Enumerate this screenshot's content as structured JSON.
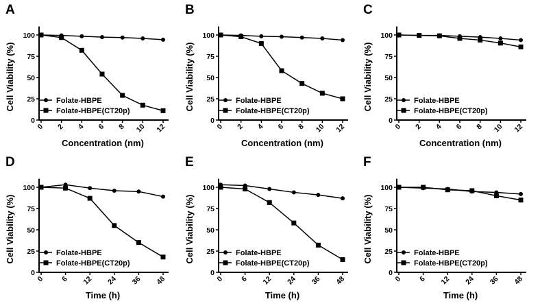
{
  "chart_data": [
    {
      "panel": "A",
      "type": "line",
      "xlabel": "Concentration (nm)",
      "ylabel": "Cell Viability (%)",
      "categories": [
        "0",
        "2",
        "4",
        "6",
        "8",
        "10",
        "12"
      ],
      "yticks": [
        "0",
        "25",
        "50",
        "75",
        "100"
      ],
      "ylim": [
        0,
        110
      ],
      "series": [
        {
          "name": "Folate-HBPE",
          "marker": "circle",
          "values": [
            100,
            99.5,
            98.5,
            97.5,
            97,
            96,
            94.5
          ]
        },
        {
          "name": "Folate-HBPE(CT20p)",
          "marker": "square",
          "values": [
            100,
            97,
            82,
            54,
            29,
            17.5,
            11
          ]
        }
      ],
      "legend": "bottom-left"
    },
    {
      "panel": "B",
      "type": "line",
      "xlabel": "Concentration (nm)",
      "ylabel": "Cell Viability (%)",
      "categories": [
        "0",
        "2",
        "4",
        "6",
        "8",
        "10",
        "12"
      ],
      "yticks": [
        "0",
        "25",
        "50",
        "75",
        "100"
      ],
      "ylim": [
        0,
        110
      ],
      "series": [
        {
          "name": "Folate-HBPE",
          "marker": "circle",
          "values": [
            100,
            99.5,
            98.5,
            98,
            97,
            96,
            94
          ]
        },
        {
          "name": "Folate-HBPE(CT20p)",
          "marker": "square",
          "values": [
            100,
            98,
            90,
            58,
            43,
            31.5,
            25
          ]
        }
      ],
      "legend": "bottom-left"
    },
    {
      "panel": "C",
      "type": "line",
      "xlabel": "Concentration (nm)",
      "ylabel": "Cell Viability (%)",
      "categories": [
        "0",
        "2",
        "4",
        "6",
        "8",
        "10",
        "12"
      ],
      "yticks": [
        "0",
        "25",
        "50",
        "75",
        "100"
      ],
      "ylim": [
        0,
        110
      ],
      "series": [
        {
          "name": "Folate-HBPE",
          "marker": "circle",
          "values": [
            100,
            99.5,
            99.5,
            98.5,
            97.5,
            96,
            94
          ]
        },
        {
          "name": "Folate-HBPE(CT20p)",
          "marker": "square",
          "values": [
            100,
            99.5,
            99,
            96,
            94,
            90.5,
            86
          ]
        }
      ],
      "legend": "bottom-left"
    },
    {
      "panel": "D",
      "type": "line",
      "xlabel": "Time (h)",
      "ylabel": "Cell Viability (%)",
      "categories": [
        "0",
        "6",
        "12",
        "24",
        "36",
        "48"
      ],
      "yticks": [
        "0",
        "25",
        "50",
        "75",
        "100"
      ],
      "ylim": [
        0,
        110
      ],
      "series": [
        {
          "name": "Folate-HBPE",
          "marker": "circle",
          "values": [
            100,
            103,
            99,
            96,
            95,
            89
          ]
        },
        {
          "name": "Folate-HBPE(CT20p)",
          "marker": "square",
          "values": [
            100,
            99,
            87,
            55,
            35,
            18
          ]
        }
      ],
      "legend": "bottom-left"
    },
    {
      "panel": "E",
      "type": "line",
      "xlabel": "Time (h)",
      "ylabel": "Cell Viability (%)",
      "categories": [
        "0",
        "6",
        "12",
        "24",
        "36",
        "48"
      ],
      "yticks": [
        "0",
        "25",
        "50",
        "75",
        "100"
      ],
      "ylim": [
        0,
        110
      ],
      "series": [
        {
          "name": "Folate-HBPE",
          "marker": "circle",
          "values": [
            103,
            102,
            98,
            94,
            91,
            87
          ]
        },
        {
          "name": "Folate-HBPE(CT20p)",
          "marker": "square",
          "values": [
            100,
            98,
            82,
            58,
            32,
            15
          ]
        }
      ],
      "legend": "bottom-left"
    },
    {
      "panel": "F",
      "type": "line",
      "xlabel": "Time (h)",
      "ylabel": "Cell Viability (%)",
      "categories": [
        "0",
        "6",
        "12",
        "24",
        "36",
        "48"
      ],
      "yticks": [
        "0",
        "25",
        "50",
        "75",
        "100"
      ],
      "ylim": [
        0,
        110
      ],
      "series": [
        {
          "name": "Folate-HBPE",
          "marker": "circle",
          "values": [
            100,
            99,
            98,
            95,
            94,
            92
          ],
          "error": [
            0,
            1,
            1,
            1,
            2,
            2
          ]
        },
        {
          "name": "Folate-HBPE(CT20p)",
          "marker": "square",
          "values": [
            100,
            100,
            97,
            96,
            90,
            85
          ],
          "error": [
            0,
            1,
            1,
            1.5,
            2,
            3
          ]
        }
      ],
      "legend": "bottom-left"
    }
  ]
}
